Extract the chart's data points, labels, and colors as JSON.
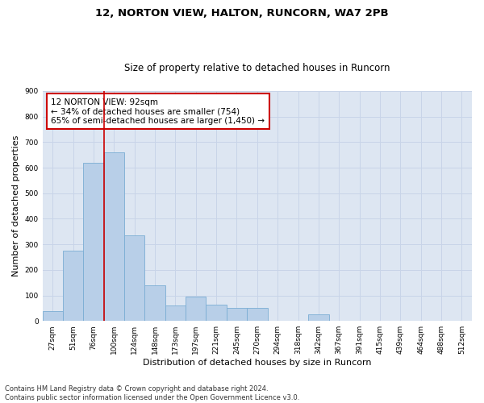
{
  "title1": "12, NORTON VIEW, HALTON, RUNCORN, WA7 2PB",
  "title2": "Size of property relative to detached houses in Runcorn",
  "xlabel": "Distribution of detached houses by size in Runcorn",
  "ylabel": "Number of detached properties",
  "categories": [
    "27sqm",
    "51sqm",
    "76sqm",
    "100sqm",
    "124sqm",
    "148sqm",
    "173sqm",
    "197sqm",
    "221sqm",
    "245sqm",
    "270sqm",
    "294sqm",
    "318sqm",
    "342sqm",
    "367sqm",
    "391sqm",
    "415sqm",
    "439sqm",
    "464sqm",
    "488sqm",
    "512sqm"
  ],
  "values": [
    40,
    275,
    620,
    660,
    335,
    140,
    60,
    95,
    65,
    50,
    50,
    0,
    0,
    25,
    0,
    0,
    0,
    0,
    0,
    0,
    0
  ],
  "bar_color": "#b8cfe8",
  "bar_edge_color": "#7aadd4",
  "vline_x_index": 2.5,
  "vline_color": "#cc0000",
  "annotation_text": "12 NORTON VIEW: 92sqm\n← 34% of detached houses are smaller (754)\n65% of semi-detached houses are larger (1,450) →",
  "annotation_box_color": "#ffffff",
  "annotation_box_edge": "#cc0000",
  "ylim": [
    0,
    900
  ],
  "yticks": [
    0,
    100,
    200,
    300,
    400,
    500,
    600,
    700,
    800,
    900
  ],
  "grid_color": "#c8d4e8",
  "bg_color": "#dde6f2",
  "footnote": "Contains HM Land Registry data © Crown copyright and database right 2024.\nContains public sector information licensed under the Open Government Licence v3.0.",
  "title_fontsize": 9.5,
  "subtitle_fontsize": 8.5,
  "axis_label_fontsize": 8,
  "tick_fontsize": 6.5,
  "annotation_fontsize": 7.5,
  "footnote_fontsize": 6
}
